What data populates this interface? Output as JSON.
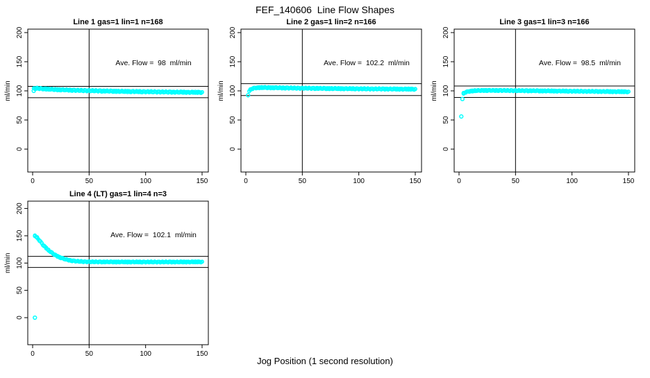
{
  "figure": {
    "title": "FEF_140606  Line Flow Shapes",
    "xlabel": "Jog Position (1 second resolution)",
    "background_color": "#FFFFFF",
    "axis_color": "#000000",
    "marker_color": "#00FFFF"
  },
  "chart_data": [
    {
      "type": "scatter",
      "title": "Line 1 gas=1 lin=1 n=168",
      "annotation": "Ave. Flow =  98  ml/min",
      "ave_flow_ml_min": 98,
      "n_points": 168,
      "ylabel": "ml/min",
      "xlim": [
        0,
        150
      ],
      "ylim": [
        0,
        200
      ],
      "xticks": [
        0,
        50,
        100,
        150
      ],
      "yticks": [
        0,
        50,
        100,
        150,
        200
      ],
      "vline_x": 50,
      "hlines": [
        107.8,
        88.2
      ],
      "marker": "open-circle",
      "marker_color": "#00FFFF",
      "band_halfwidth": 1.3,
      "trend_keypoints": [
        [
          1,
          103.5
        ],
        [
          4,
          104.3
        ],
        [
          8,
          103.8
        ],
        [
          15,
          102.8
        ],
        [
          25,
          101.8
        ],
        [
          40,
          100.8
        ],
        [
          60,
          99.8
        ],
        [
          80,
          99.0
        ],
        [
          100,
          98.5
        ],
        [
          120,
          98.0
        ],
        [
          150,
          97.4
        ]
      ],
      "outliers": [
        [
          1,
          100
        ]
      ]
    },
    {
      "type": "scatter",
      "title": "Line 2 gas=1 lin=2 n=166",
      "annotation": "Ave. Flow =  102.2  ml/min",
      "ave_flow_ml_min": 102.2,
      "n_points": 166,
      "ylabel": "ml/min",
      "xlim": [
        0,
        150
      ],
      "ylim": [
        0,
        200
      ],
      "xticks": [
        0,
        50,
        100,
        150
      ],
      "yticks": [
        0,
        50,
        100,
        150,
        200
      ],
      "vline_x": 50,
      "hlines": [
        112.4,
        92.0
      ],
      "marker": "open-circle",
      "marker_color": "#00FFFF",
      "band_halfwidth": 1.2,
      "trend_keypoints": [
        [
          3,
          100
        ],
        [
          5,
          103.5
        ],
        [
          9,
          105.3
        ],
        [
          15,
          105.6
        ],
        [
          25,
          105.3
        ],
        [
          40,
          104.8
        ],
        [
          60,
          104.3
        ],
        [
          80,
          103.9
        ],
        [
          100,
          103.5
        ],
        [
          125,
          103.2
        ],
        [
          150,
          102.9
        ]
      ],
      "outliers": [
        [
          2,
          92.5
        ]
      ]
    },
    {
      "type": "scatter",
      "title": "Line 3 gas=1 lin=3 n=166",
      "annotation": "Ave. Flow =  98.5  ml/min",
      "ave_flow_ml_min": 98.5,
      "n_points": 166,
      "ylabel": "ml/min",
      "xlim": [
        0,
        150
      ],
      "ylim": [
        0,
        200
      ],
      "xticks": [
        0,
        50,
        100,
        150
      ],
      "yticks": [
        0,
        50,
        100,
        150,
        200
      ],
      "vline_x": 50,
      "hlines": [
        108.4,
        88.7
      ],
      "marker": "open-circle",
      "marker_color": "#00FFFF",
      "band_halfwidth": 1.1,
      "trend_keypoints": [
        [
          4,
          95.5
        ],
        [
          6,
          97.8
        ],
        [
          9,
          99.3
        ],
        [
          14,
          100.2
        ],
        [
          20,
          100.7
        ],
        [
          35,
          100.7
        ],
        [
          55,
          100.3
        ],
        [
          80,
          99.8
        ],
        [
          105,
          99.3
        ],
        [
          130,
          98.8
        ],
        [
          150,
          98.4
        ]
      ],
      "outliers": [
        [
          2,
          56
        ],
        [
          3,
          86
        ]
      ]
    },
    {
      "type": "scatter",
      "title": "Line 4 (LT) gas=1 lin=4 n=3",
      "annotation": "Ave. Flow =  102.1  ml/min",
      "ave_flow_ml_min": 102.1,
      "n_points": 3,
      "ylabel": "ml/min",
      "xlim": [
        0,
        150
      ],
      "ylim": [
        0,
        200
      ],
      "xticks": [
        0,
        50,
        100,
        150
      ],
      "yticks": [
        0,
        50,
        100,
        150,
        200
      ],
      "vline_x": 50,
      "hlines": [
        112.3,
        91.9
      ],
      "marker": "open-circle",
      "marker_color": "#00FFFF",
      "band_halfwidth": 1.1,
      "trend_keypoints": [
        [
          2,
          150
        ],
        [
          3,
          148.5
        ],
        [
          4,
          146.5
        ],
        [
          5,
          144
        ],
        [
          7,
          139
        ],
        [
          9,
          134
        ],
        [
          11,
          129.5
        ],
        [
          13,
          125.5
        ],
        [
          15,
          122
        ],
        [
          17,
          118.8
        ],
        [
          19,
          116
        ],
        [
          21,
          113.5
        ],
        [
          24,
          110.5
        ],
        [
          27,
          108.2
        ],
        [
          30,
          106.4
        ],
        [
          33,
          105
        ],
        [
          36,
          104
        ],
        [
          40,
          103.2
        ],
        [
          45,
          102.6
        ],
        [
          55,
          102.2
        ],
        [
          70,
          102.1
        ],
        [
          90,
          102
        ],
        [
          110,
          102
        ],
        [
          130,
          102
        ],
        [
          150,
          102.2
        ]
      ],
      "outliers": [
        [
          2,
          0
        ]
      ]
    }
  ]
}
